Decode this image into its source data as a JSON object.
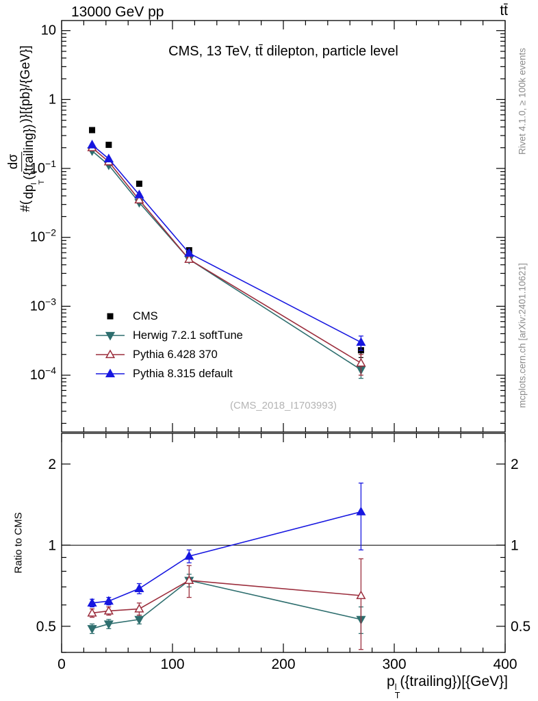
{
  "header": {
    "left": "13000 GeV pp",
    "right": "tt̄"
  },
  "watermark": "(CMS_2018_I1703993)",
  "side_notes": {
    "top_right": "Rivet 4.1.0, ≥ 100k events",
    "bottom_right": "mcplots.cern.ch [arXiv:2401.10621]"
  },
  "axis_labels": {
    "y_main": {
      "prefix": "#(",
      "numerator": "dσ",
      "den_base": "dp",
      "den_sup": "l",
      "den_sub": "T",
      "den_rest": "({trailing})",
      "suffix": ")}[{pb}/{GeV}]"
    },
    "x": {
      "base": "p",
      "sup": "l",
      "sub": "T",
      "rest": "({trailing})[{GeV}]"
    }
  },
  "chart_data": {
    "type": "line",
    "title": "CMS, 13 TeV, tt̄ dilepton, particle level",
    "xlabel": "p_T^l({trailing})[{GeV}]",
    "ylabel": "#(dσ/dp_T^l({trailing}))}[{pb}/{GeV}]",
    "ratio_ylabel": "Ratio to CMS",
    "x": [
      27.5,
      42.5,
      70,
      115,
      270
    ],
    "xlim": [
      0,
      400
    ],
    "x_major_ticks": [
      0,
      100,
      200,
      300,
      400
    ],
    "x_minor_step": 20,
    "main_axis": {
      "scale": "log",
      "ylim": [
        1.5e-05,
        14
      ],
      "major_decades": [
        1,
        0,
        -1,
        -2,
        -3,
        -4
      ]
    },
    "ratio_axis": {
      "scale": "log",
      "ylim": [
        0.4,
        2.6
      ],
      "major_ticks": [
        0.5,
        1,
        2
      ],
      "minor_ticks": [
        0.4,
        0.6,
        0.7,
        0.8,
        0.9
      ]
    },
    "legend_position": "inside-left-bottom",
    "grid": false,
    "series": [
      {
        "name": "CMS",
        "color": "#000000",
        "marker": "square",
        "open": false,
        "line": false,
        "values": [
          0.36,
          0.22,
          0.06,
          0.0065,
          0.00023
        ],
        "yerr": [
          0.012,
          0.008,
          0.002,
          0.0003,
          5e-05
        ]
      },
      {
        "name": "Herwig 7.2.1 softTune",
        "color": "#2e6e6e",
        "marker": "triangle-down",
        "open": false,
        "line": true,
        "values": [
          0.18,
          0.112,
          0.032,
          0.0048,
          0.00012
        ],
        "yerr": [
          0.004,
          0.003,
          0.001,
          0.0002,
          3e-05
        ],
        "ratio": [
          0.49,
          0.51,
          0.53,
          0.74,
          0.53
        ],
        "ratio_err": [
          0.02,
          0.02,
          0.02,
          0.04,
          0.06
        ]
      },
      {
        "name": "Pythia 6.428 370",
        "color": "#9b2d3c",
        "marker": "triangle-up",
        "open": true,
        "line": true,
        "values": [
          0.2,
          0.125,
          0.035,
          0.0048,
          0.00015
        ],
        "yerr": [
          0.005,
          0.004,
          0.001,
          0.0004,
          5e-05
        ],
        "ratio": [
          0.56,
          0.57,
          0.58,
          0.74,
          0.65
        ],
        "ratio_err": [
          0.02,
          0.02,
          0.03,
          0.1,
          0.24
        ]
      },
      {
        "name": "Pythia 8.315 default",
        "color": "#1717e0",
        "marker": "triangle-up",
        "open": false,
        "line": true,
        "values": [
          0.22,
          0.138,
          0.0415,
          0.0059,
          0.0003
        ],
        "yerr": [
          0.004,
          0.003,
          0.001,
          0.0003,
          7e-05
        ],
        "ratio": [
          0.61,
          0.62,
          0.69,
          0.91,
          1.33
        ],
        "ratio_err": [
          0.02,
          0.02,
          0.03,
          0.05,
          0.37
        ]
      }
    ]
  }
}
